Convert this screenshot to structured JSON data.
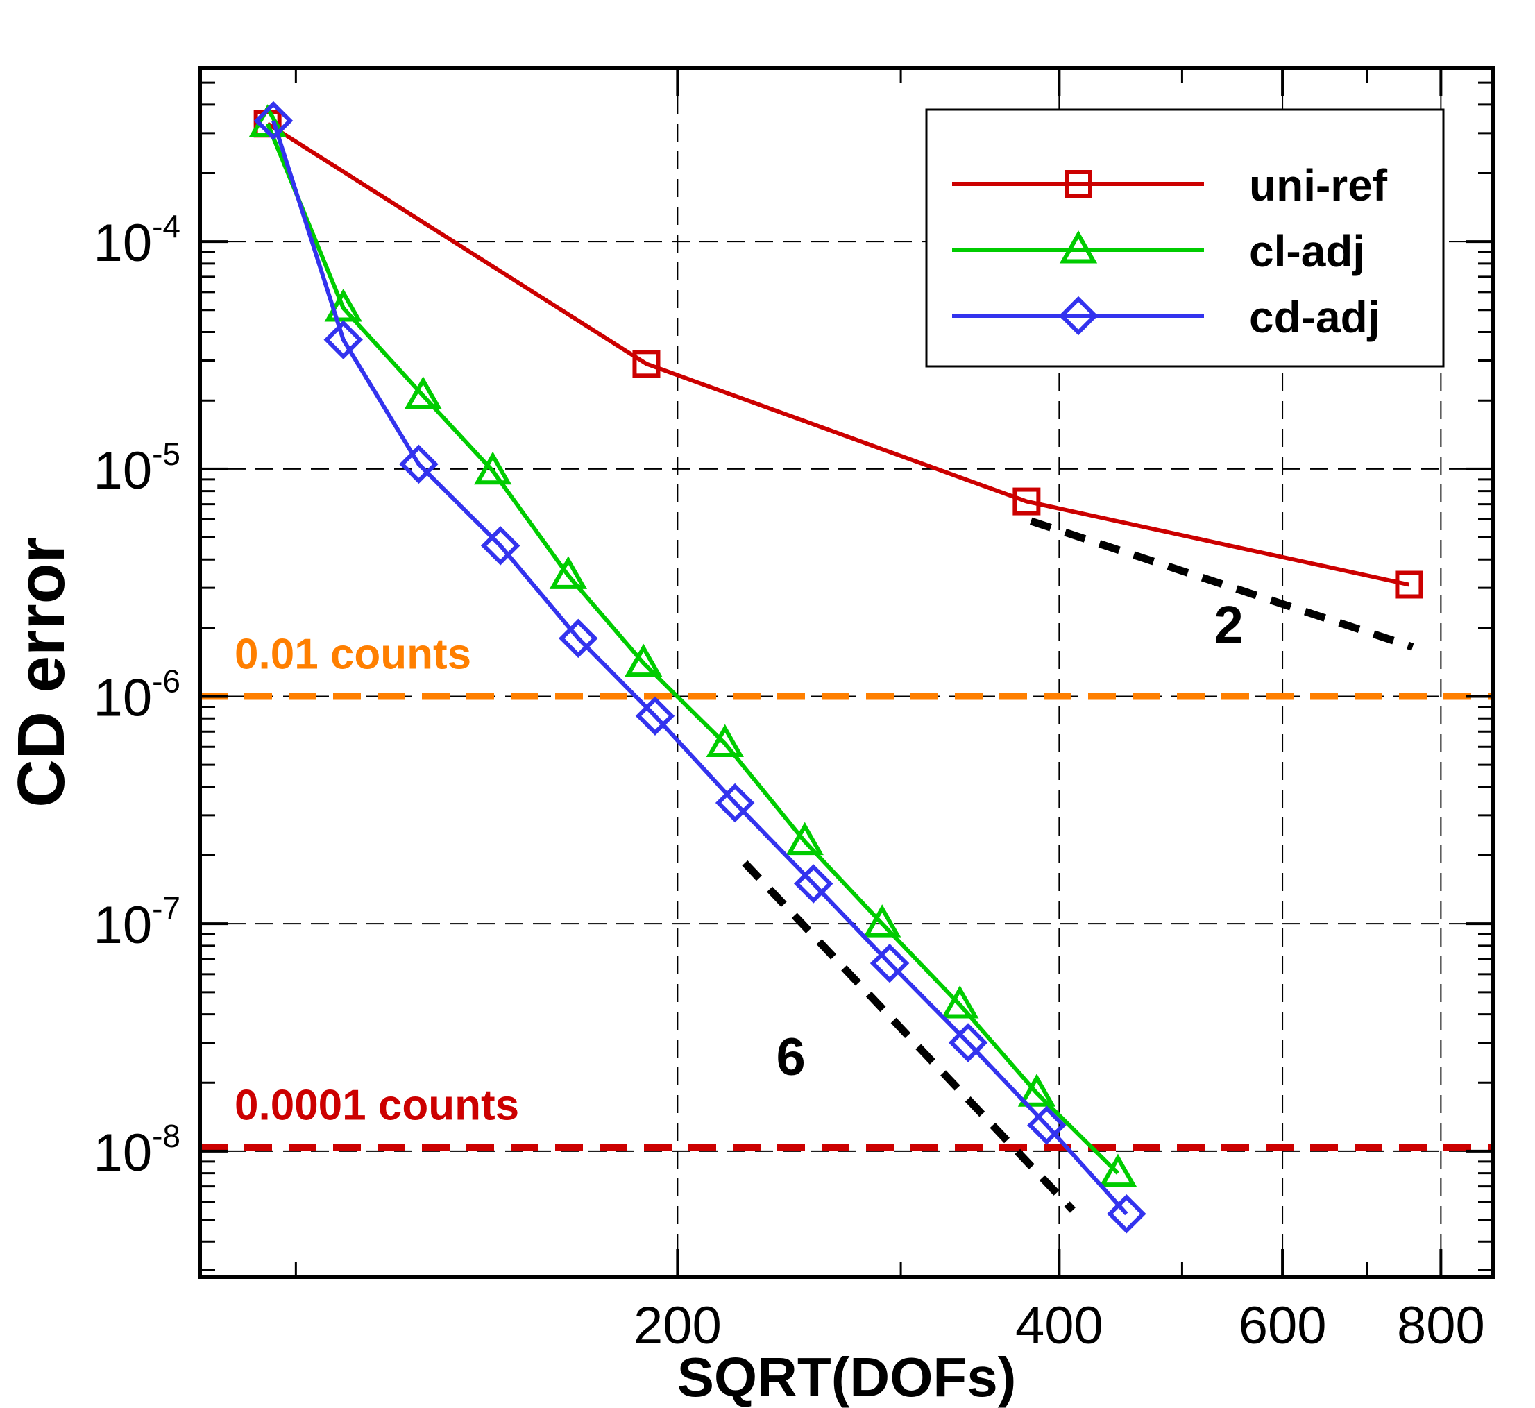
{
  "chart_data": {
    "type": "line",
    "xlabel": "SQRT(DOFs)",
    "ylabel": "CD error",
    "x_scale": "log",
    "y_scale": "log",
    "xlim": [
      84,
      880
    ],
    "ylim": [
      2.8e-09,
      0.00058
    ],
    "grid": true,
    "legend_position": "top-right",
    "x_ticks": [
      {
        "value": 200,
        "label": "200"
      },
      {
        "value": 400,
        "label": "400"
      },
      {
        "value": 600,
        "label": "600"
      },
      {
        "value": 800,
        "label": "800"
      }
    ],
    "y_ticks": [
      {
        "value": 0.0001,
        "base": "10",
        "exp": "-4"
      },
      {
        "value": 1e-05,
        "base": "10",
        "exp": "-5"
      },
      {
        "value": 1e-06,
        "base": "10",
        "exp": "-6"
      },
      {
        "value": 1e-07,
        "base": "10",
        "exp": "-7"
      },
      {
        "value": 1e-08,
        "base": "10",
        "exp": "-8"
      }
    ],
    "series": [
      {
        "name": "uni-ref",
        "color": "#cc0000",
        "marker": "square",
        "x": [
          95,
          189,
          377,
          755
        ],
        "y": [
          0.00033,
          2.9e-05,
          7.2e-06,
          3.1e-06
        ]
      },
      {
        "name": "cl-adj",
        "color": "#00cc00",
        "marker": "triangle",
        "x": [
          95,
          109,
          126,
          143,
          164,
          188,
          218,
          252,
          290,
          334,
          384,
          445
        ],
        "y": [
          0.00033,
          5.1e-05,
          2.1e-05,
          9.8e-06,
          3.4e-06,
          1.4e-06,
          6.2e-07,
          2.3e-07,
          1e-07,
          4.4e-08,
          1.8e-08,
          8e-09
        ]
      },
      {
        "name": "cd-adj",
        "color": "#3333ee",
        "marker": "diamond",
        "x": [
          96,
          109,
          125,
          145,
          167,
          192,
          222,
          256,
          294,
          339,
          391,
          452
        ],
        "y": [
          0.00034,
          3.7e-05,
          1.05e-05,
          4.6e-06,
          1.8e-06,
          8.2e-07,
          3.4e-07,
          1.5e-07,
          6.7e-08,
          3e-08,
          1.3e-08,
          5.3e-09
        ]
      }
    ],
    "reference_lines": [
      {
        "label": "0.01 counts",
        "value": 1e-06,
        "color": "#ff7f00"
      },
      {
        "label": "0.0001 counts",
        "value": 1.04e-08,
        "color": "#cc0000"
      }
    ],
    "slope_lines": [
      {
        "label": "2",
        "x": [
          380,
          760
        ],
        "y": [
          5.9e-06,
          1.65e-06
        ]
      },
      {
        "label": "6",
        "x": [
          226,
          410
        ],
        "y": [
          1.85e-07,
          5.5e-09
        ]
      }
    ]
  }
}
